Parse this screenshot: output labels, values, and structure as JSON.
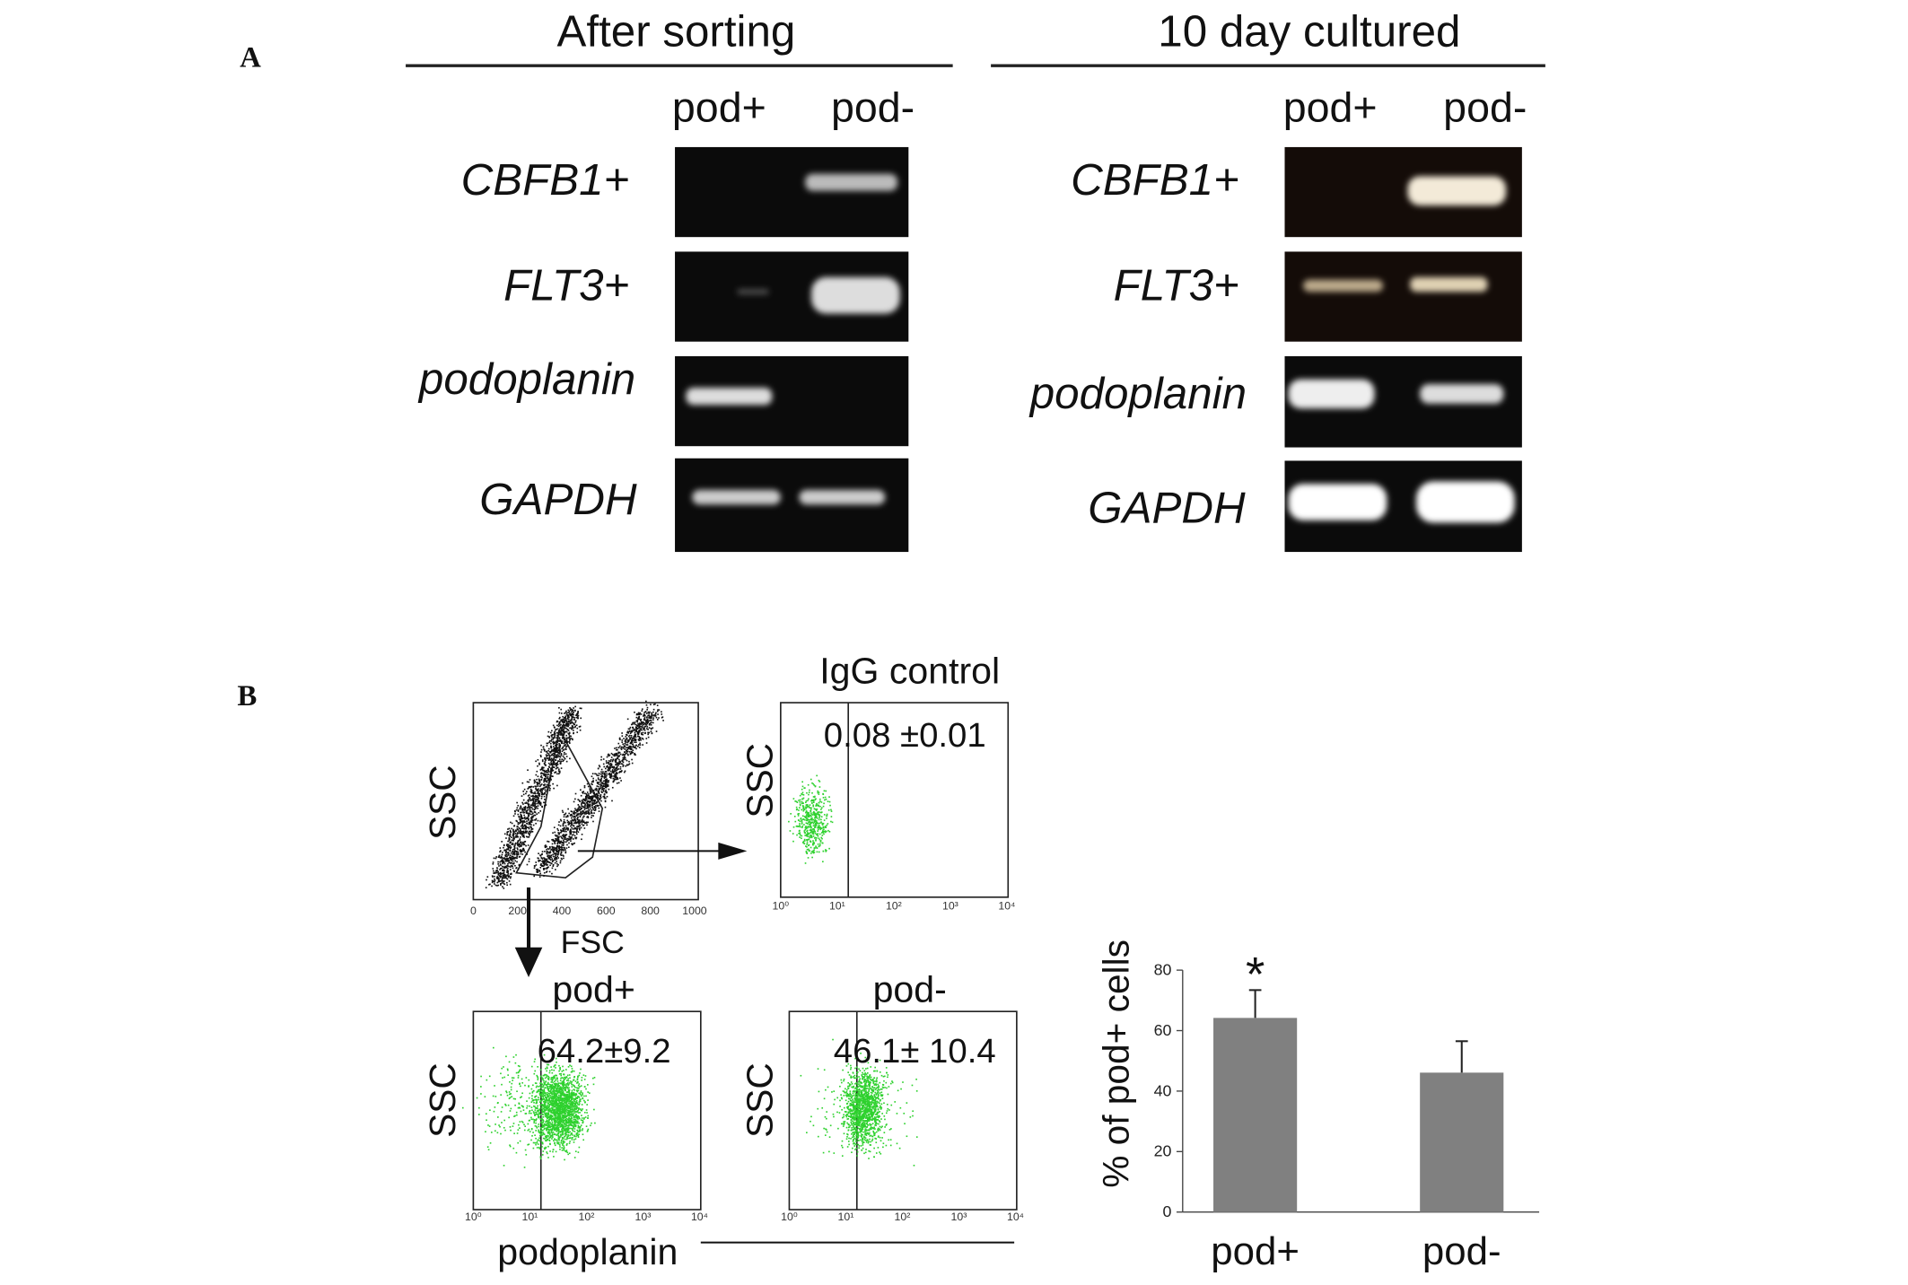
{
  "figure": {
    "panels": [
      "A",
      "B"
    ],
    "gel_left": {
      "title": "After sorting",
      "lanes": [
        "pod+",
        "pod-"
      ],
      "genes": [
        "CBFB1+",
        "FLT3+",
        "podoplanin",
        "GAPDH"
      ]
    },
    "gel_right": {
      "title": "10 day cultured",
      "lanes": [
        "pod+",
        "pod-"
      ],
      "genes": [
        "CBFB1+",
        "FLT3+",
        "podoplanin",
        "GAPDH"
      ]
    },
    "flow": {
      "ssc": "SSC",
      "fsc": "FSC",
      "x_label": "podoplanin",
      "fsc_ticks": [
        "0",
        "200",
        "400",
        "600",
        "800",
        "1000"
      ],
      "log_ticks": [
        "10⁰",
        "10¹",
        "10²",
        "10³",
        "10⁴"
      ],
      "igg_title": "IgG control",
      "igg_value": "0.08 ±0.01",
      "pos_title": "pod+",
      "pos_value": "64.2±9.2",
      "neg_title": "pod-",
      "neg_value": "46.1± 10.4"
    }
  },
  "chart_data": {
    "type": "bar",
    "ylabel": "% of pod+ cells",
    "categories": [
      "pod+",
      "pod-"
    ],
    "values": [
      64.2,
      46.1
    ],
    "errors": [
      9.2,
      10.4
    ],
    "color": "#808080",
    "ylim": [
      0,
      80
    ],
    "yticks": [
      0,
      20,
      40,
      60,
      80
    ],
    "annotations": [
      "*"
    ]
  }
}
